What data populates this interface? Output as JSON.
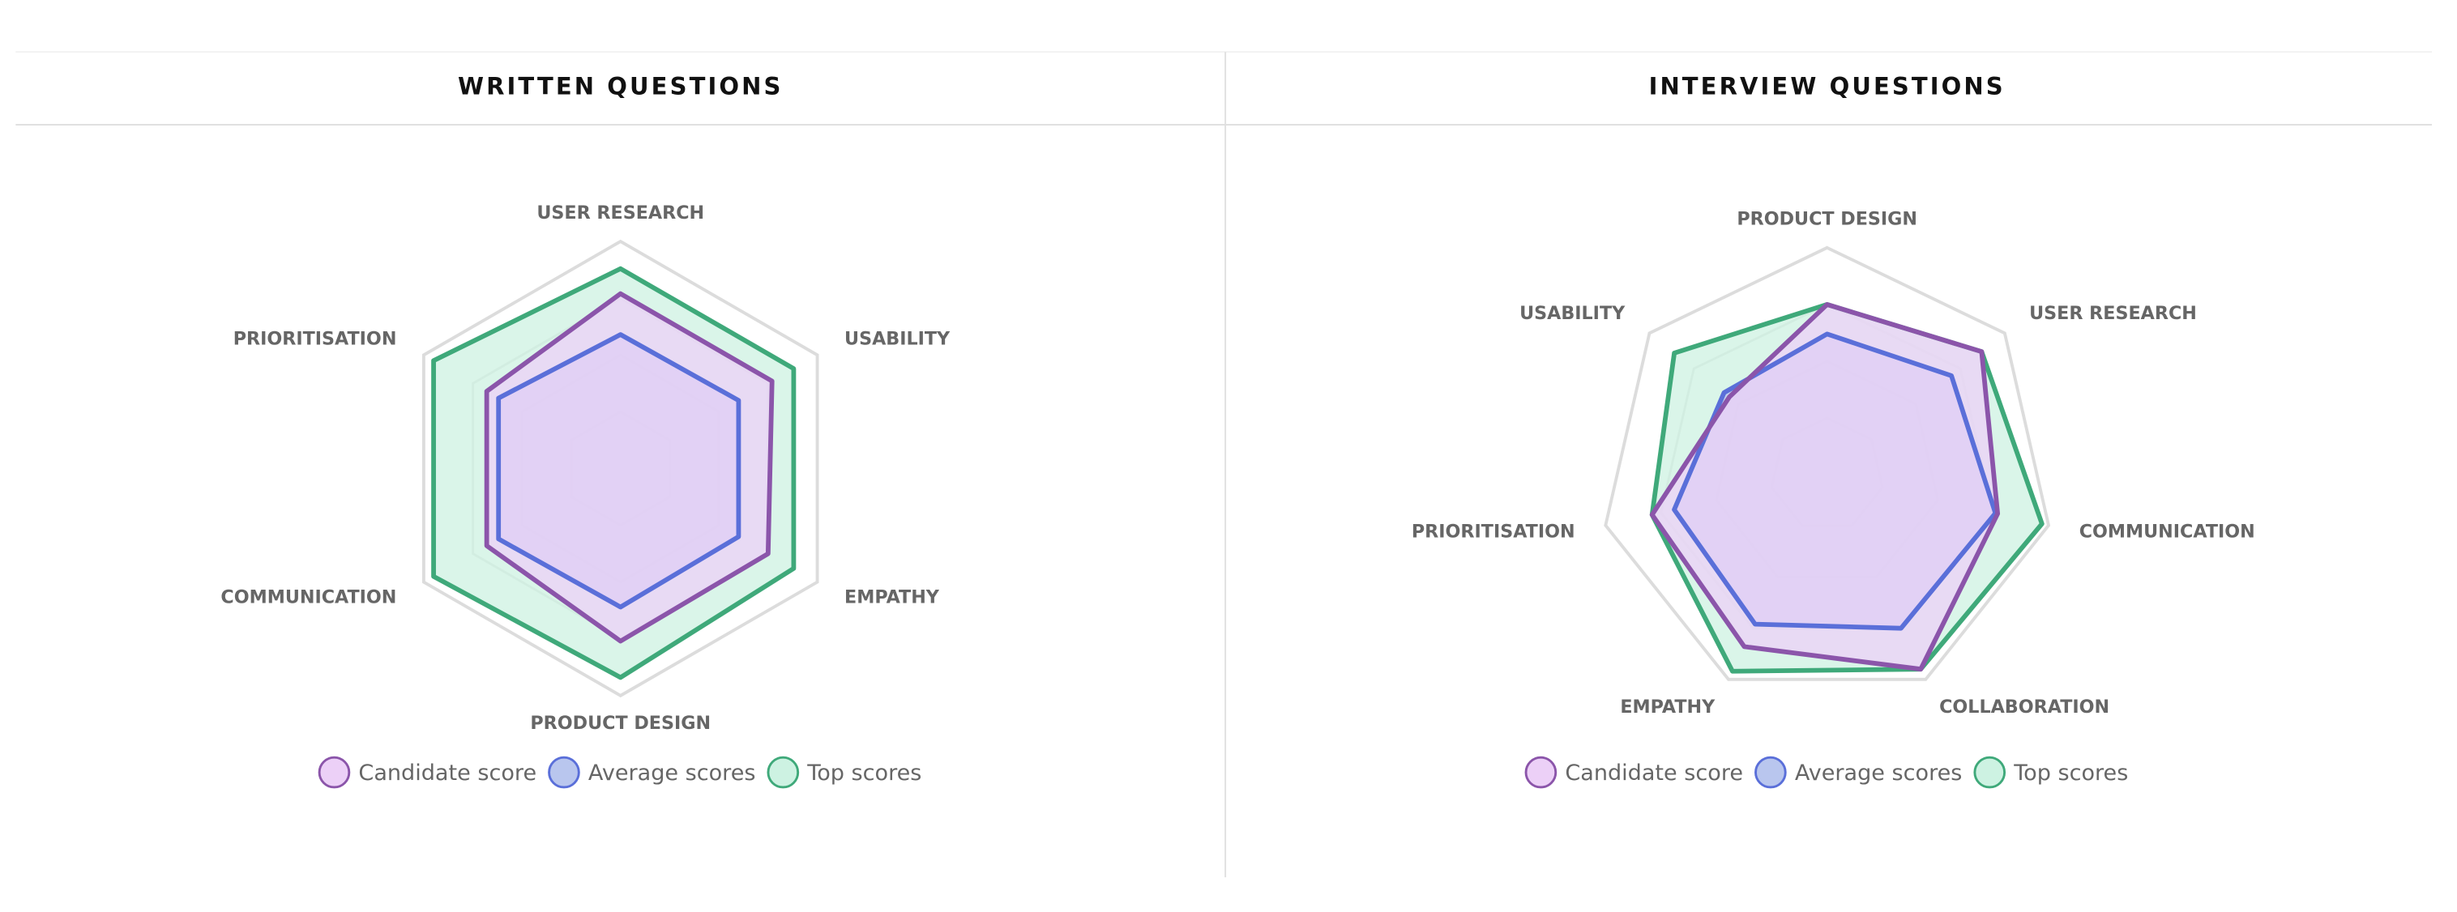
{
  "chart_data": [
    {
      "type": "radar",
      "title": "WRITTEN QUESTIONS",
      "axes": [
        "USER RESEARCH",
        "USABILITY",
        "EMPATHY",
        "PRODUCT DESIGN",
        "COMMUNICATION",
        "PRIORITISATION"
      ],
      "rlim": [
        0,
        100
      ],
      "rticks": [
        25,
        50,
        75,
        100
      ],
      "series": [
        {
          "name": "Candidate score",
          "color": "#8b55aa",
          "fill": "#ecd0f7",
          "values": [
            77,
            77,
            75,
            76,
            68,
            68
          ]
        },
        {
          "name": "Average scores",
          "color": "#5a6fd9",
          "fill": "#b9c6ee",
          "values": [
            59,
            60,
            60,
            61,
            62,
            62
          ]
        },
        {
          "name": "Top scores",
          "color": "#3fa97a",
          "fill": "#cdf2e2",
          "values": [
            88,
            88,
            88,
            92,
            95,
            95
          ]
        }
      ]
    },
    {
      "type": "radar",
      "title": "INTERVIEW QUESTIONS",
      "axes": [
        "PRODUCT DESIGN",
        "USER RESEARCH",
        "COMMUNICATION",
        "COLLABORATION",
        "EMPATHY",
        "PRIORITISATION",
        "USABILITY"
      ],
      "rlim": [
        0,
        100
      ],
      "rticks": [
        25,
        50,
        75,
        100
      ],
      "series": [
        {
          "name": "Candidate score",
          "color": "#8b55aa",
          "fill": "#ecd0f7",
          "values": [
            75,
            87,
            77,
            95,
            84,
            79,
            55
          ]
        },
        {
          "name": "Average scores",
          "color": "#5a6fd9",
          "fill": "#b9c6ee",
          "values": [
            62,
            70,
            76,
            75,
            73,
            69,
            58
          ]
        },
        {
          "name": "Top scores",
          "color": "#3fa97a",
          "fill": "#cdf2e2",
          "values": [
            75,
            87,
            97,
            95,
            96,
            79,
            86
          ]
        }
      ]
    }
  ]
}
